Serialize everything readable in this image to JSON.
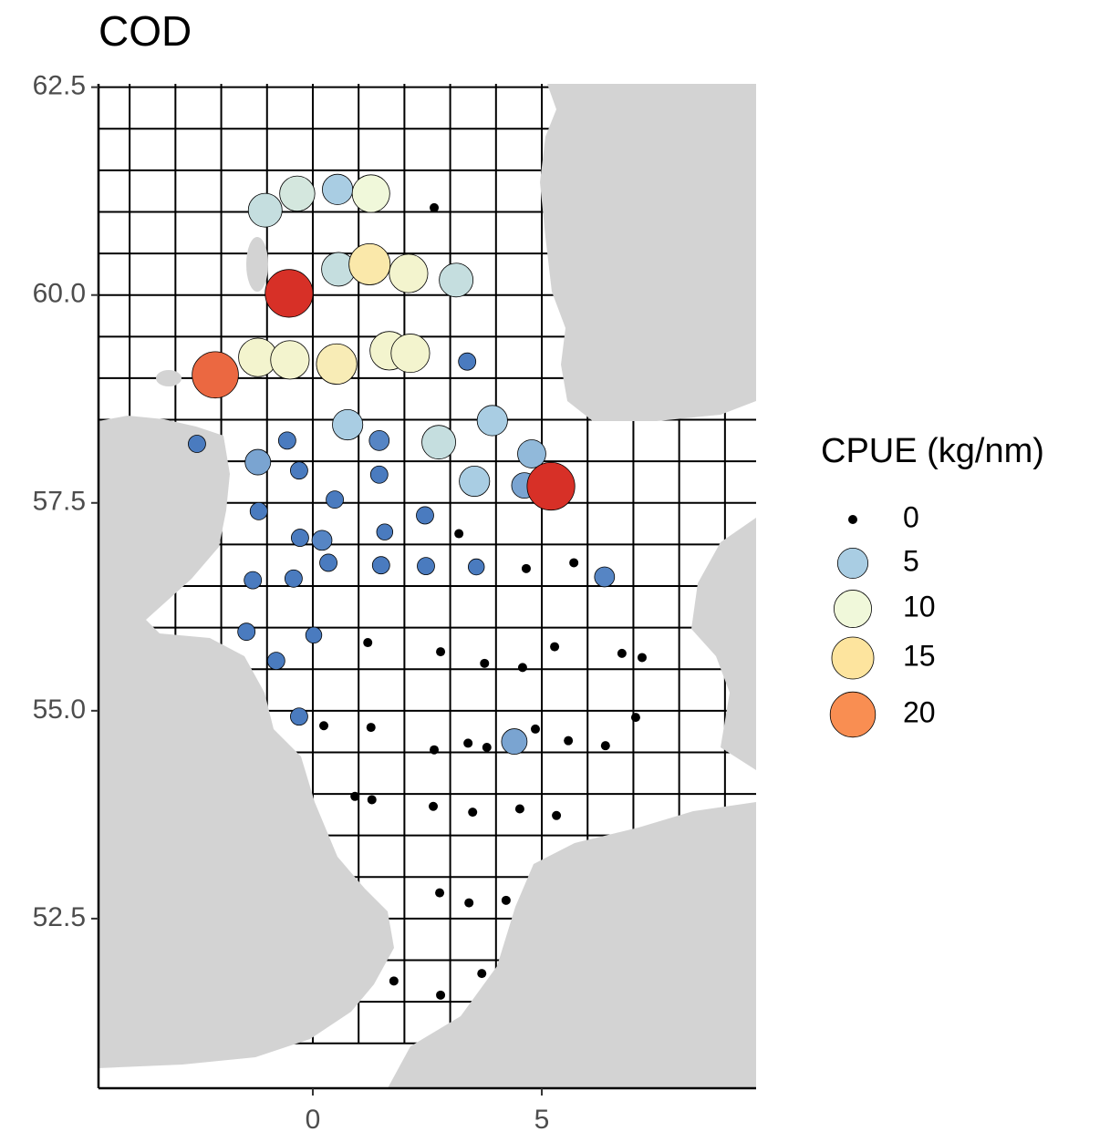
{
  "chart_data": {
    "type": "bubble_map",
    "title": "COD",
    "xlim": [
      -4.68,
      9.68
    ],
    "ylim": [
      50.46,
      62.54
    ],
    "xticks": [
      0,
      5
    ],
    "yticks": [
      62.5,
      {
        "value": 60,
        "label": "60.0"
      },
      57.5,
      {
        "value": 55,
        "label": "55.0"
      },
      52.5
    ],
    "grid": {
      "lon": [
        -5,
        10
      ],
      "lat": [
        51,
        63
      ],
      "dlon": 1,
      "dlat": 0.5,
      "color": "#000000"
    },
    "land_color": "#d3d3d3",
    "zero_color": "#000000",
    "color_stops": [
      {
        "value": 1,
        "color": "#4a7bbf"
      },
      {
        "value": 5,
        "color": "#a9cde3"
      },
      {
        "value": 10,
        "color": "#f0f8da"
      },
      {
        "value": 15,
        "color": "#fde49e"
      },
      {
        "value": 20,
        "color": "#f98e52"
      },
      {
        "value": 25,
        "color": "#d73027"
      }
    ],
    "size_legend": {
      "title": "CPUE (kg/nm)",
      "breaks": [
        0,
        5,
        10,
        15,
        20
      ]
    },
    "series": [
      {
        "x": [
          -1.04,
          -0.34,
          0.54,
          1.27,
          2.65,
          0.56,
          1.24,
          2.09,
          3.13,
          -0.52,
          -2.13,
          -1.2,
          -0.5,
          0.52,
          1.67,
          2.13,
          3.37,
          -2.53,
          -1.2,
          -0.56,
          -0.3,
          0.76,
          1.45,
          2.75,
          3.92,
          4.78,
          3.53,
          4.62,
          5.2,
          1.45,
          0.48,
          -1.18,
          2.45,
          1.57,
          3.19,
          -0.28,
          0.2,
          0.34,
          1.49,
          2.47,
          3.57,
          4.66,
          5.7,
          6.37,
          -1.31,
          -0.42,
          -1.45,
          0.02,
          -0.8,
          1.2,
          2.79,
          3.75,
          4.58,
          5.28,
          6.75,
          7.19,
          -0.3,
          0.24,
          1.27,
          7.05,
          2.65,
          3.39,
          3.8,
          4.4,
          4.86,
          5.58,
          6.39,
          0.92,
          1.29,
          2.63,
          3.49,
          4.52,
          5.32,
          2.77,
          3.41,
          4.22,
          1.77,
          3.69,
          2.79
        ],
        "y": [
          61.02,
          61.22,
          61.27,
          61.22,
          61.05,
          60.31,
          60.37,
          60.26,
          60.18,
          60.02,
          59.04,
          59.25,
          59.22,
          59.17,
          59.33,
          59.3,
          59.2,
          58.21,
          57.99,
          58.25,
          57.89,
          58.44,
          58.25,
          58.23,
          58.49,
          58.09,
          57.76,
          57.71,
          57.7,
          57.84,
          57.54,
          57.4,
          57.35,
          57.15,
          57.13,
          57.08,
          57.05,
          56.78,
          56.75,
          56.74,
          56.73,
          56.71,
          56.78,
          56.61,
          56.57,
          56.59,
          55.95,
          55.91,
          55.6,
          55.82,
          55.71,
          55.57,
          55.52,
          55.77,
          55.69,
          55.64,
          54.93,
          54.82,
          54.8,
          54.92,
          54.53,
          54.61,
          54.56,
          54.63,
          54.78,
          54.64,
          54.58,
          53.97,
          53.93,
          53.85,
          53.78,
          53.82,
          53.74,
          52.81,
          52.69,
          52.72,
          51.75,
          51.84,
          51.58
        ],
        "sizes": [
          7,
          8,
          5,
          10,
          0,
          7,
          14,
          11,
          7,
          25,
          22,
          11,
          11,
          13,
          11,
          11,
          1,
          1,
          3,
          1,
          1,
          5,
          1.5,
          7,
          5,
          4,
          5,
          3,
          25,
          1,
          1,
          1,
          1,
          0.8,
          0,
          1,
          1.5,
          1,
          1,
          1,
          0.8,
          0,
          0,
          1.5,
          1,
          1,
          1,
          0.8,
          1,
          0,
          0,
          0,
          0,
          0,
          0,
          0,
          1,
          0,
          0,
          0,
          0,
          0,
          0,
          3,
          0,
          0,
          0,
          0,
          0,
          0,
          0,
          0,
          0,
          0,
          0,
          0,
          0,
          0,
          0
        ]
      }
    ]
  }
}
